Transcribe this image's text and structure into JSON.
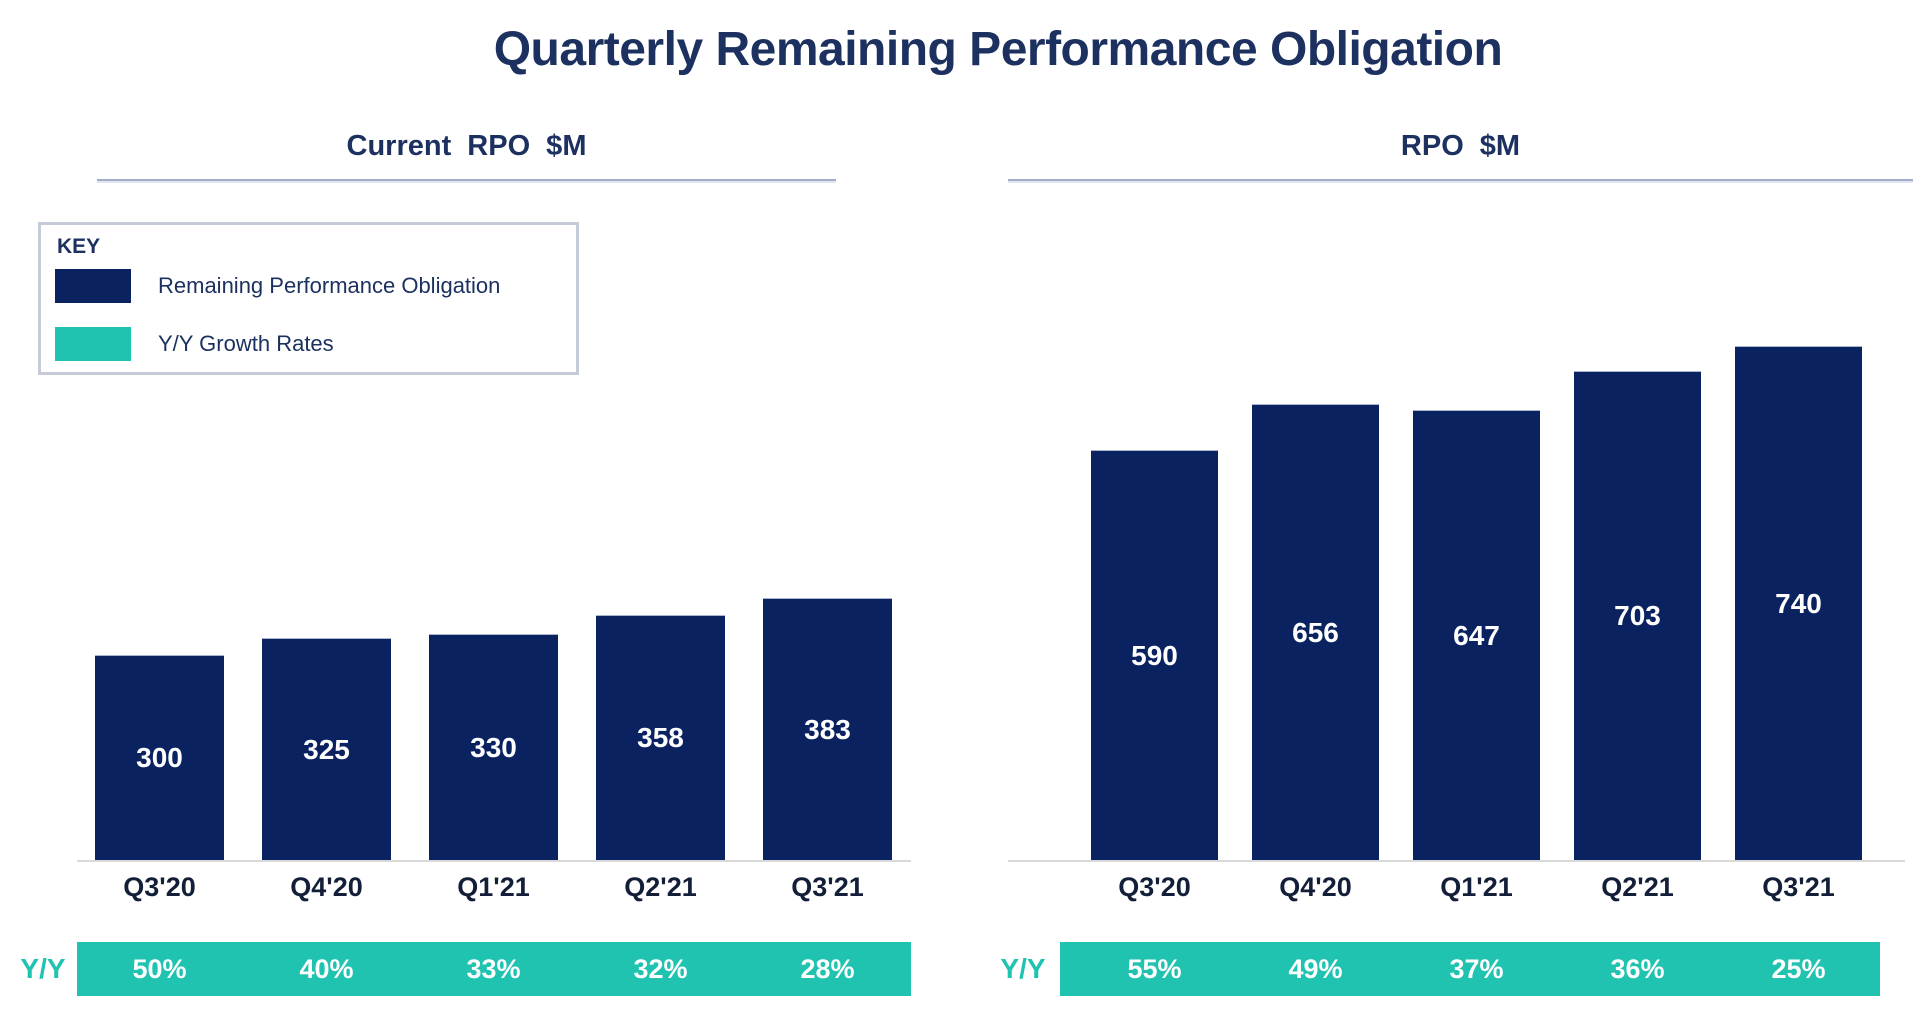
{
  "page_title": "Quarterly Remaining Performance Obligation",
  "legend": {
    "heading": "KEY",
    "items": [
      {
        "label": "Remaining Performance Obligation",
        "color": "#0a2360"
      },
      {
        "label": "Y/Y Growth Rates",
        "color": "#1fc3b0"
      }
    ]
  },
  "colors": {
    "bar_navy": "#0a2360",
    "growth_teal": "#1fc3b0",
    "title_navy": "#1d3160",
    "axis_gray": "#d9d9d9",
    "rule_gray_blue": "#a3adc7",
    "value_label_white": "#ffffff"
  },
  "chart_data": [
    {
      "type": "bar",
      "title": "Current RPO $M",
      "categories": [
        "Q3'20",
        "Q4'20",
        "Q1'21",
        "Q2'21",
        "Q3'21"
      ],
      "series": [
        {
          "name": "Remaining Performance Obligation",
          "values": [
            300,
            325,
            330,
            358,
            383
          ]
        },
        {
          "name": "Y/Y Growth Rates",
          "values": [
            "50%",
            "40%",
            "33%",
            "32%",
            "28%"
          ]
        }
      ],
      "row_label": "Y/Y",
      "xlabel": "",
      "ylabel": "",
      "ylim": [
        0,
        440
      ],
      "grid": false,
      "y_axis_visible": false,
      "data_labels": "inside-center",
      "legend_position": "top-left"
    },
    {
      "type": "bar",
      "title": "RPO $M",
      "categories": [
        "Q3'20",
        "Q4'20",
        "Q1'21",
        "Q2'21",
        "Q3'21"
      ],
      "series": [
        {
          "name": "Remaining Performance Obligation",
          "values": [
            590,
            656,
            647,
            703,
            740
          ]
        },
        {
          "name": "Y/Y Growth Rates",
          "values": [
            "55%",
            "49%",
            "37%",
            "36%",
            "25%"
          ]
        }
      ],
      "row_label": "Y/Y",
      "xlabel": "",
      "ylabel": "",
      "ylim": [
        0,
        760
      ],
      "grid": false,
      "y_axis_visible": false,
      "data_labels": "inside-center",
      "legend_position": "none"
    }
  ]
}
